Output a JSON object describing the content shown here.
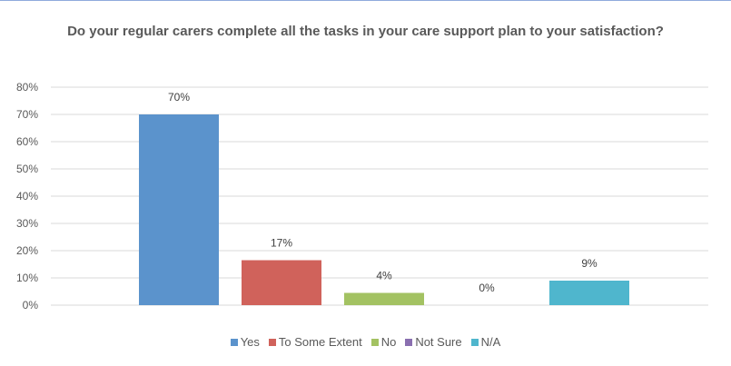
{
  "chart_data": {
    "type": "bar",
    "title": "Do your regular carers complete all the tasks in your care support plan to your satisfaction?",
    "categories": [
      "Yes",
      "To Some Extent",
      "No",
      "Not Sure",
      "N/A"
    ],
    "values": [
      70,
      17,
      4,
      0,
      9
    ],
    "data_labels": [
      "70%",
      "17%",
      "4%",
      "0%",
      "9%"
    ],
    "value_display": [
      70,
      16.5,
      4.5,
      0,
      9
    ],
    "colors": [
      "#5b93cc",
      "#d0625b",
      "#a3c262",
      "#8a6fb0",
      "#4fb6cd"
    ],
    "yticks": [
      "0%",
      "10%",
      "20%",
      "30%",
      "40%",
      "50%",
      "60%",
      "70%",
      "80%"
    ],
    "ylim": [
      0,
      80
    ],
    "grid": true,
    "legend": "bottom",
    "xlabel": "",
    "ylabel": ""
  }
}
